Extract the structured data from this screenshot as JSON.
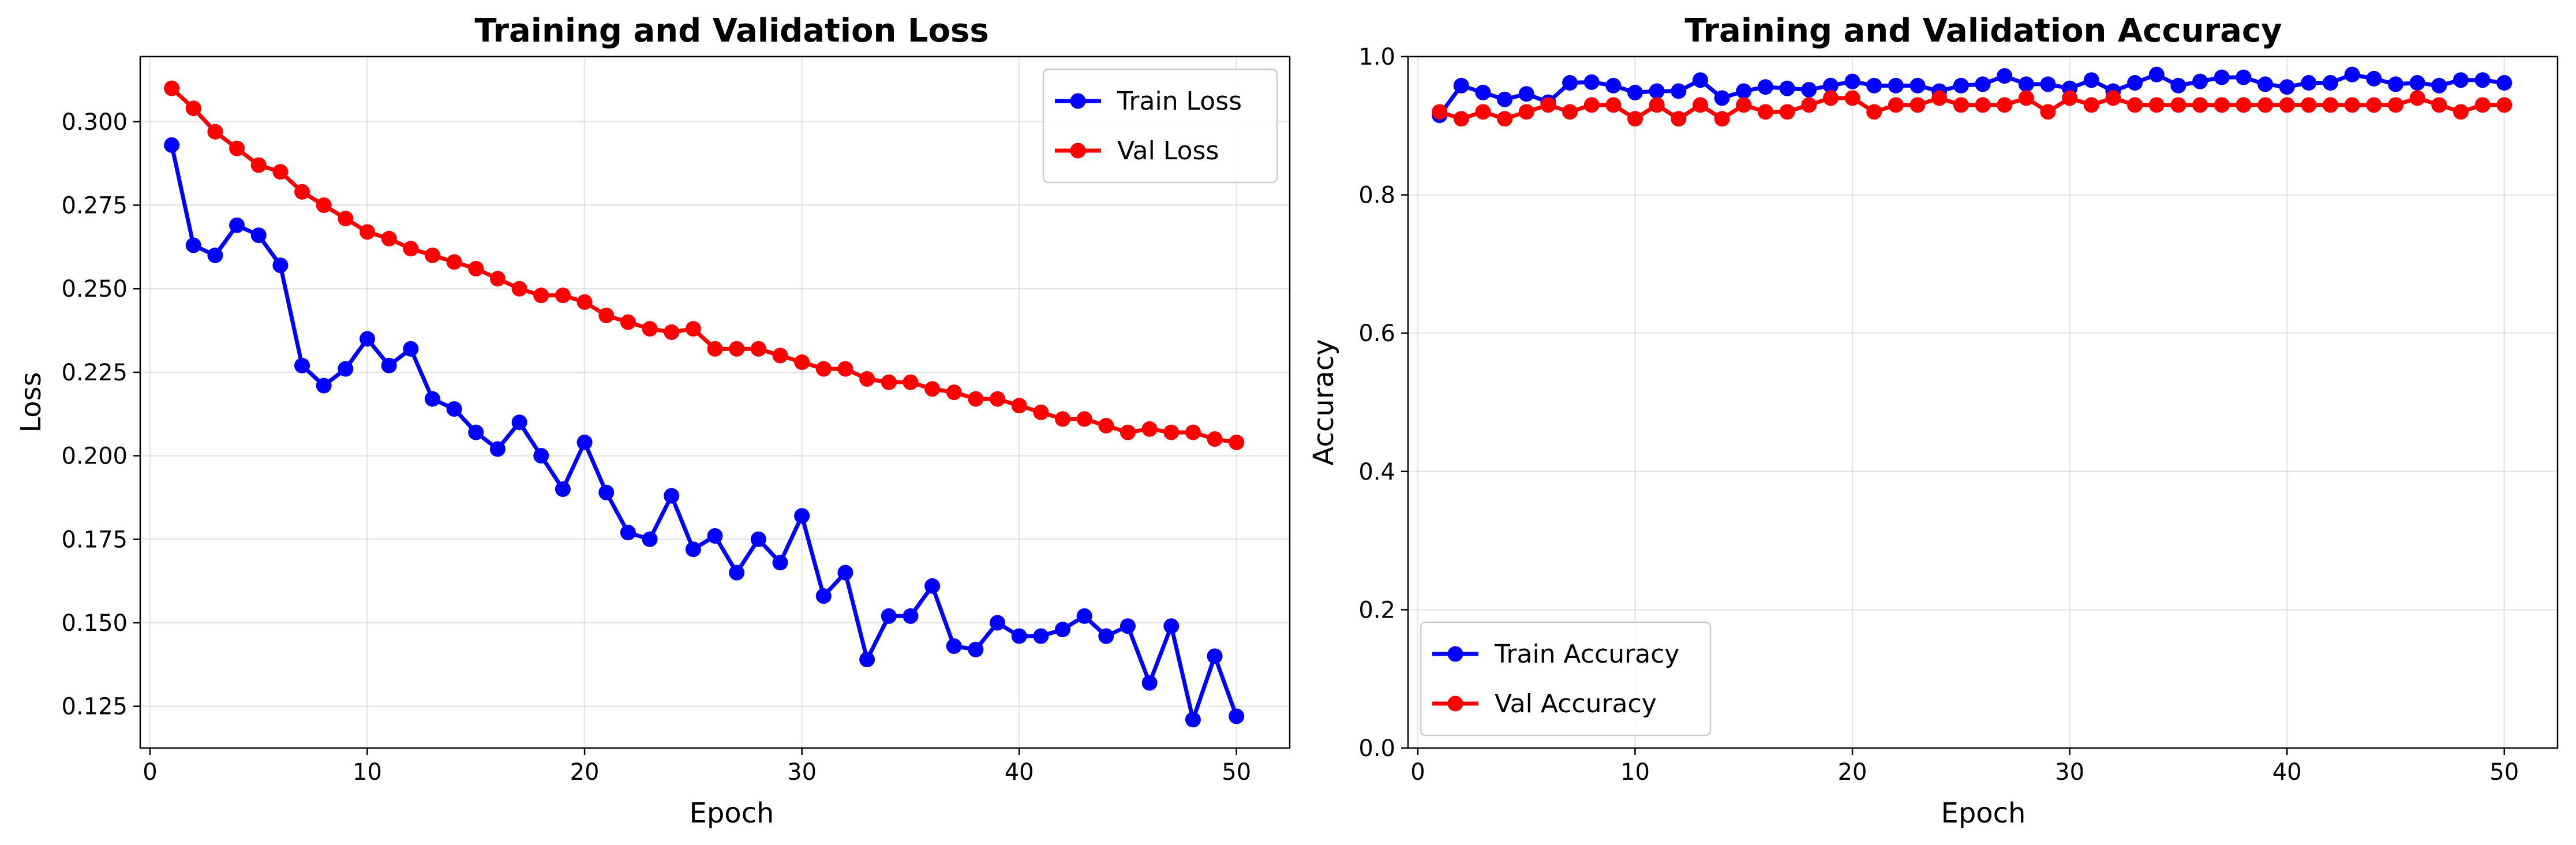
{
  "chart_data": [
    {
      "type": "line",
      "title": "Training and Validation Loss",
      "xlabel": "Epoch",
      "ylabel": "Loss",
      "xlim": [
        -0.45,
        52.45
      ],
      "ylim": [
        0.1125,
        0.3195
      ],
      "xticks": [
        0,
        10,
        20,
        30,
        40,
        50
      ],
      "yticks": [
        0.125,
        0.15,
        0.175,
        0.2,
        0.225,
        0.25,
        0.275,
        0.3
      ],
      "ytick_decimals": 3,
      "grid": true,
      "legend_position": "top-right",
      "x": [
        1,
        2,
        3,
        4,
        5,
        6,
        7,
        8,
        9,
        10,
        11,
        12,
        13,
        14,
        15,
        16,
        17,
        18,
        19,
        20,
        21,
        22,
        23,
        24,
        25,
        26,
        27,
        28,
        29,
        30,
        31,
        32,
        33,
        34,
        35,
        36,
        37,
        38,
        39,
        40,
        41,
        42,
        43,
        44,
        45,
        46,
        47,
        48,
        49,
        50
      ],
      "series": [
        {
          "name": "Train Loss",
          "color": "#0000ff",
          "values": [
            0.293,
            0.263,
            0.26,
            0.269,
            0.266,
            0.257,
            0.227,
            0.221,
            0.226,
            0.235,
            0.227,
            0.232,
            0.217,
            0.214,
            0.207,
            0.202,
            0.21,
            0.2,
            0.19,
            0.204,
            0.189,
            0.177,
            0.175,
            0.188,
            0.172,
            0.176,
            0.165,
            0.175,
            0.168,
            0.182,
            0.158,
            0.165,
            0.139,
            0.152,
            0.152,
            0.161,
            0.143,
            0.142,
            0.15,
            0.146,
            0.146,
            0.148,
            0.152,
            0.146,
            0.149,
            0.132,
            0.149,
            0.121,
            0.14,
            0.122
          ]
        },
        {
          "name": "Val Loss",
          "color": "#ff0000",
          "values": [
            0.31,
            0.304,
            0.297,
            0.292,
            0.287,
            0.285,
            0.279,
            0.275,
            0.271,
            0.267,
            0.265,
            0.262,
            0.26,
            0.258,
            0.256,
            0.253,
            0.25,
            0.248,
            0.248,
            0.246,
            0.242,
            0.24,
            0.238,
            0.237,
            0.238,
            0.232,
            0.232,
            0.232,
            0.23,
            0.228,
            0.226,
            0.226,
            0.223,
            0.222,
            0.222,
            0.22,
            0.219,
            0.217,
            0.217,
            0.215,
            0.213,
            0.211,
            0.211,
            0.209,
            0.207,
            0.208,
            0.207,
            0.207,
            0.205,
            0.204
          ]
        }
      ]
    },
    {
      "type": "line",
      "title": "Training and Validation Accuracy",
      "xlabel": "Epoch",
      "ylabel": "Accuracy",
      "xlim": [
        -0.45,
        52.45
      ],
      "ylim": [
        0.0,
        1.0
      ],
      "xticks": [
        0,
        10,
        20,
        30,
        40,
        50
      ],
      "yticks": [
        0.0,
        0.2,
        0.4,
        0.6,
        0.8,
        1.0
      ],
      "ytick_decimals": 1,
      "grid": true,
      "legend_position": "bottom-left",
      "x": [
        1,
        2,
        3,
        4,
        5,
        6,
        7,
        8,
        9,
        10,
        11,
        12,
        13,
        14,
        15,
        16,
        17,
        18,
        19,
        20,
        21,
        22,
        23,
        24,
        25,
        26,
        27,
        28,
        29,
        30,
        31,
        32,
        33,
        34,
        35,
        36,
        37,
        38,
        39,
        40,
        41,
        42,
        43,
        44,
        45,
        46,
        47,
        48,
        49,
        50
      ],
      "series": [
        {
          "name": "Train Accuracy",
          "color": "#0000ff",
          "values": [
            0.915,
            0.958,
            0.948,
            0.938,
            0.946,
            0.934,
            0.962,
            0.963,
            0.958,
            0.948,
            0.95,
            0.95,
            0.966,
            0.94,
            0.95,
            0.956,
            0.954,
            0.952,
            0.958,
            0.964,
            0.958,
            0.958,
            0.958,
            0.95,
            0.958,
            0.96,
            0.972,
            0.96,
            0.96,
            0.954,
            0.966,
            0.95,
            0.962,
            0.974,
            0.958,
            0.964,
            0.97,
            0.97,
            0.96,
            0.956,
            0.962,
            0.962,
            0.974,
            0.968,
            0.96,
            0.962,
            0.958,
            0.966,
            0.966,
            0.962
          ]
        },
        {
          "name": "Val Accuracy",
          "color": "#ff0000",
          "values": [
            0.92,
            0.91,
            0.92,
            0.91,
            0.92,
            0.93,
            0.92,
            0.93,
            0.93,
            0.91,
            0.93,
            0.91,
            0.93,
            0.91,
            0.93,
            0.92,
            0.92,
            0.93,
            0.94,
            0.94,
            0.92,
            0.93,
            0.93,
            0.94,
            0.93,
            0.93,
            0.93,
            0.94,
            0.92,
            0.94,
            0.93,
            0.94,
            0.93,
            0.93,
            0.93,
            0.93,
            0.93,
            0.93,
            0.93,
            0.93,
            0.93,
            0.93,
            0.93,
            0.93,
            0.93,
            0.94,
            0.93,
            0.92,
            0.93,
            0.93
          ]
        }
      ]
    }
  ]
}
